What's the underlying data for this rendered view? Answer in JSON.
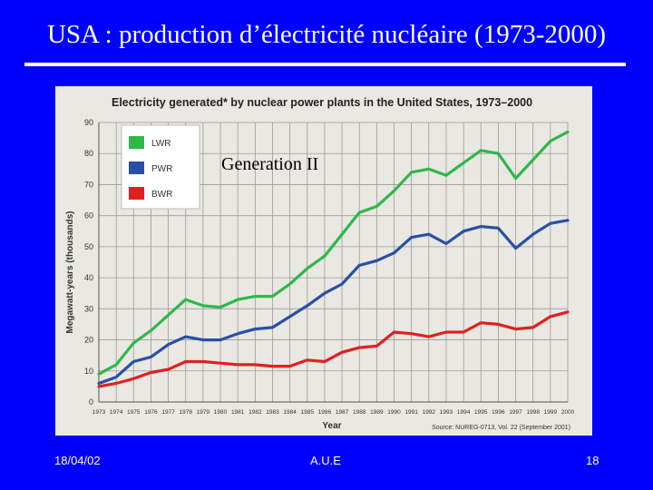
{
  "slide": {
    "title": "USA : production d’électricité nucléaire   (1973-2000)",
    "overlay_label": "Generation II",
    "footer_date": "18/04/02",
    "footer_org": "A.U.E",
    "footer_page": "18"
  },
  "colors": {
    "background": "#0000ff",
    "LWR": "#2eb84a",
    "PWR": "#2850a8",
    "BWR": "#e02020"
  },
  "chart_data": {
    "type": "line",
    "title": "Electricity generated* by nuclear power plants in the United States, 1973–2000",
    "xlabel": "Year",
    "ylabel": "Megawatt-years (thousands)",
    "ylim": [
      0,
      90
    ],
    "yticks": [
      "0",
      "10",
      "20",
      "30",
      "40",
      "50",
      "60",
      "70",
      "80",
      "90"
    ],
    "categories": [
      "1973",
      "1974",
      "1975",
      "1976",
      "1977",
      "1978",
      "1979",
      "1980",
      "1981",
      "1982",
      "1983",
      "1984",
      "1985",
      "1986",
      "1987",
      "1988",
      "1989",
      "1990",
      "1991",
      "1992",
      "1993",
      "1994",
      "1995",
      "1996",
      "1997",
      "1998",
      "1999",
      "2000"
    ],
    "series": [
      {
        "name": "LWR",
        "color": "#2eb84a",
        "values": [
          9,
          12,
          19,
          23,
          28,
          33,
          31,
          30.5,
          33,
          34,
          34,
          38,
          43,
          47,
          54,
          61,
          63,
          68,
          74,
          75,
          73,
          77,
          81,
          80,
          72,
          78,
          84,
          87
        ]
      },
      {
        "name": "PWR",
        "color": "#2850a8",
        "values": [
          6,
          8,
          13,
          14.5,
          18.5,
          21,
          20,
          20,
          22,
          23.5,
          24,
          27.5,
          31,
          35,
          38,
          44,
          45.5,
          48,
          53,
          54,
          51,
          55,
          56.5,
          56,
          49.5,
          54,
          57.5,
          58.5
        ]
      },
      {
        "name": "BWR",
        "color": "#e02020",
        "values": [
          5,
          6,
          7.5,
          9.5,
          10.5,
          13,
          13,
          12.5,
          12,
          12,
          11.5,
          11.5,
          13.5,
          13,
          16,
          17.5,
          18,
          22.5,
          22,
          21,
          22.5,
          22.5,
          25.5,
          25,
          23.5,
          24,
          27.5,
          29
        ]
      }
    ],
    "legend": [
      "LWR",
      "PWR",
      "BWR"
    ],
    "legend_position": "top-left",
    "grid": true,
    "source": "Source: NUREG-0713, Vol. 22 (September 2001)"
  }
}
